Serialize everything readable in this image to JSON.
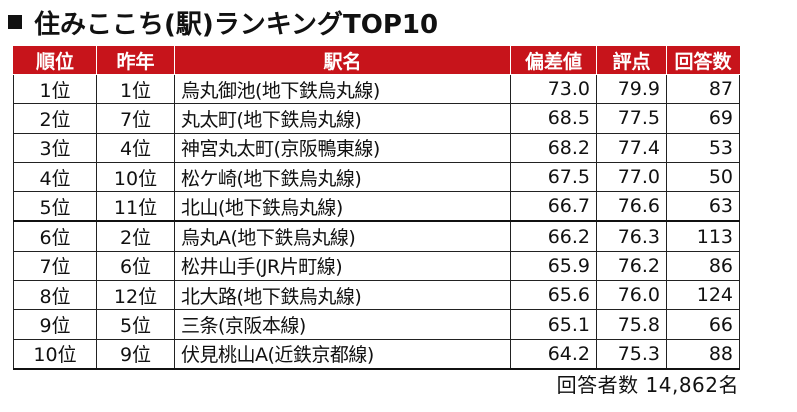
{
  "title": "住みここち(駅)ランキングTOP10",
  "colors": {
    "header_bg": "#c7141b",
    "header_text": "#ffffff",
    "border": "#222222"
  },
  "table": {
    "headers": [
      "順位",
      "昨年",
      "駅名",
      "偏差値",
      "評点",
      "回答数"
    ],
    "rows": [
      [
        "1位",
        "1位",
        "烏丸御池(地下鉄烏丸線)",
        "73.0",
        "79.9",
        "87"
      ],
      [
        "2位",
        "7位",
        "丸太町(地下鉄烏丸線)",
        "68.5",
        "77.5",
        "69"
      ],
      [
        "3位",
        "4位",
        "神宮丸太町(京阪鴨東線)",
        "68.2",
        "77.4",
        "53"
      ],
      [
        "4位",
        "10位",
        "松ケ崎(地下鉄烏丸線)",
        "67.5",
        "77.0",
        "50"
      ],
      [
        "5位",
        "11位",
        "北山(地下鉄烏丸線)",
        "66.7",
        "76.6",
        "63"
      ],
      [
        "6位",
        "2位",
        "烏丸A(地下鉄烏丸線)",
        "66.2",
        "76.3",
        "113"
      ],
      [
        "7位",
        "6位",
        "松井山手(JR片町線)",
        "65.9",
        "76.2",
        "86"
      ],
      [
        "8位",
        "12位",
        "北大路(地下鉄烏丸線)",
        "65.6",
        "76.0",
        "124"
      ],
      [
        "9位",
        "5位",
        "三条(京阪本線)",
        "65.1",
        "75.8",
        "66"
      ],
      [
        "10位",
        "9位",
        "伏見桃山A(近鉄京都線)",
        "64.2",
        "75.3",
        "88"
      ]
    ]
  },
  "footer": "回答者数 14,862名"
}
